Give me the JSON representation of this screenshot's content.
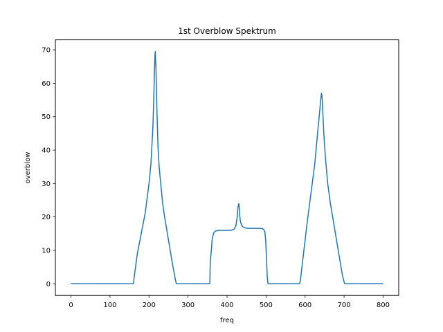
{
  "chart_data": {
    "type": "line",
    "title": "1st Overblow Spektrum",
    "xlabel": "freq",
    "ylabel": "overblow",
    "xlim": [
      -40,
      840
    ],
    "ylim": [
      -3.5,
      73
    ],
    "xticks": [
      0,
      100,
      200,
      300,
      400,
      500,
      600,
      700,
      800
    ],
    "yticks": [
      0,
      10,
      20,
      30,
      40,
      50,
      60,
      70
    ],
    "grid": false,
    "legend": "none",
    "series": [
      {
        "color": "#1f77b4",
        "x": [
          0,
          100,
          160,
          162,
          170,
          180,
          190,
          200,
          205,
          210,
          213,
          215,
          216,
          218,
          220,
          223,
          226,
          230,
          235,
          240,
          250,
          260,
          268,
          270,
          300,
          340,
          356,
          357,
          359,
          362,
          366,
          370,
          380,
          395,
          410,
          418,
          423,
          426,
          428,
          430,
          431,
          432,
          434,
          437,
          441,
          447,
          455,
          470,
          485,
          491,
          494,
          497,
          499,
          501,
          503,
          505,
          540,
          586,
          588,
          595,
          605,
          615,
          625,
          632,
          637,
          640,
          642,
          643,
          644,
          646,
          648,
          652,
          658,
          665,
          675,
          685,
          695,
          700,
          702,
          750,
          800
        ],
        "y": [
          0,
          0,
          0,
          2,
          9,
          15,
          21,
          30,
          36,
          47,
          59,
          68,
          69.5,
          64,
          53,
          41,
          35,
          30,
          24,
          20,
          13,
          6,
          1,
          0,
          0,
          0,
          0,
          7,
          9,
          13.5,
          15.3,
          15.8,
          16,
          16,
          16,
          16.3,
          17.5,
          20,
          23,
          24,
          23.5,
          21,
          18.8,
          17.6,
          17,
          16.7,
          16.6,
          16.6,
          16.6,
          16.5,
          16.2,
          15.6,
          13,
          8,
          2,
          0,
          0,
          0,
          1,
          8,
          18,
          27,
          36,
          45,
          51,
          55,
          57,
          56.5,
          55,
          50,
          45,
          38,
          30,
          24,
          17,
          10,
          3,
          0.5,
          0,
          0,
          0
        ]
      }
    ]
  }
}
